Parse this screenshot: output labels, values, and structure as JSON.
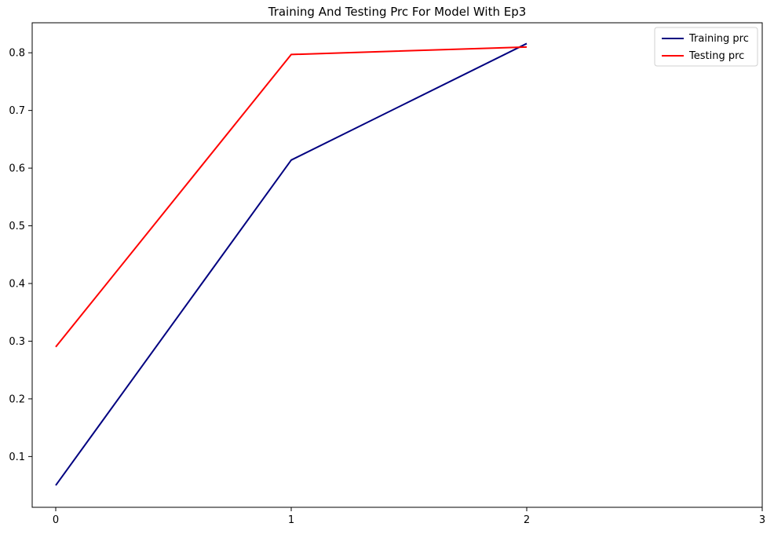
{
  "chart_data": {
    "type": "line",
    "title": "Training And Testing Prc For Model With Ep3",
    "xlabel": "",
    "ylabel": "",
    "x": [
      0,
      1,
      2
    ],
    "xlim": [
      -0.1,
      3
    ],
    "ylim": [
      0.012,
      0.852
    ],
    "xticks": [
      0,
      1,
      2,
      3
    ],
    "yticks": [
      0.1,
      0.2,
      0.3,
      0.4,
      0.5,
      0.6,
      0.7,
      0.8
    ],
    "grid": false,
    "legend_position": "top-right",
    "series": [
      {
        "name": "Training prc",
        "color": "#000080",
        "values": [
          0.05,
          0.614,
          0.816
        ]
      },
      {
        "name": "Testing prc",
        "color": "#ff0000",
        "values": [
          0.29,
          0.797,
          0.81
        ]
      }
    ]
  }
}
